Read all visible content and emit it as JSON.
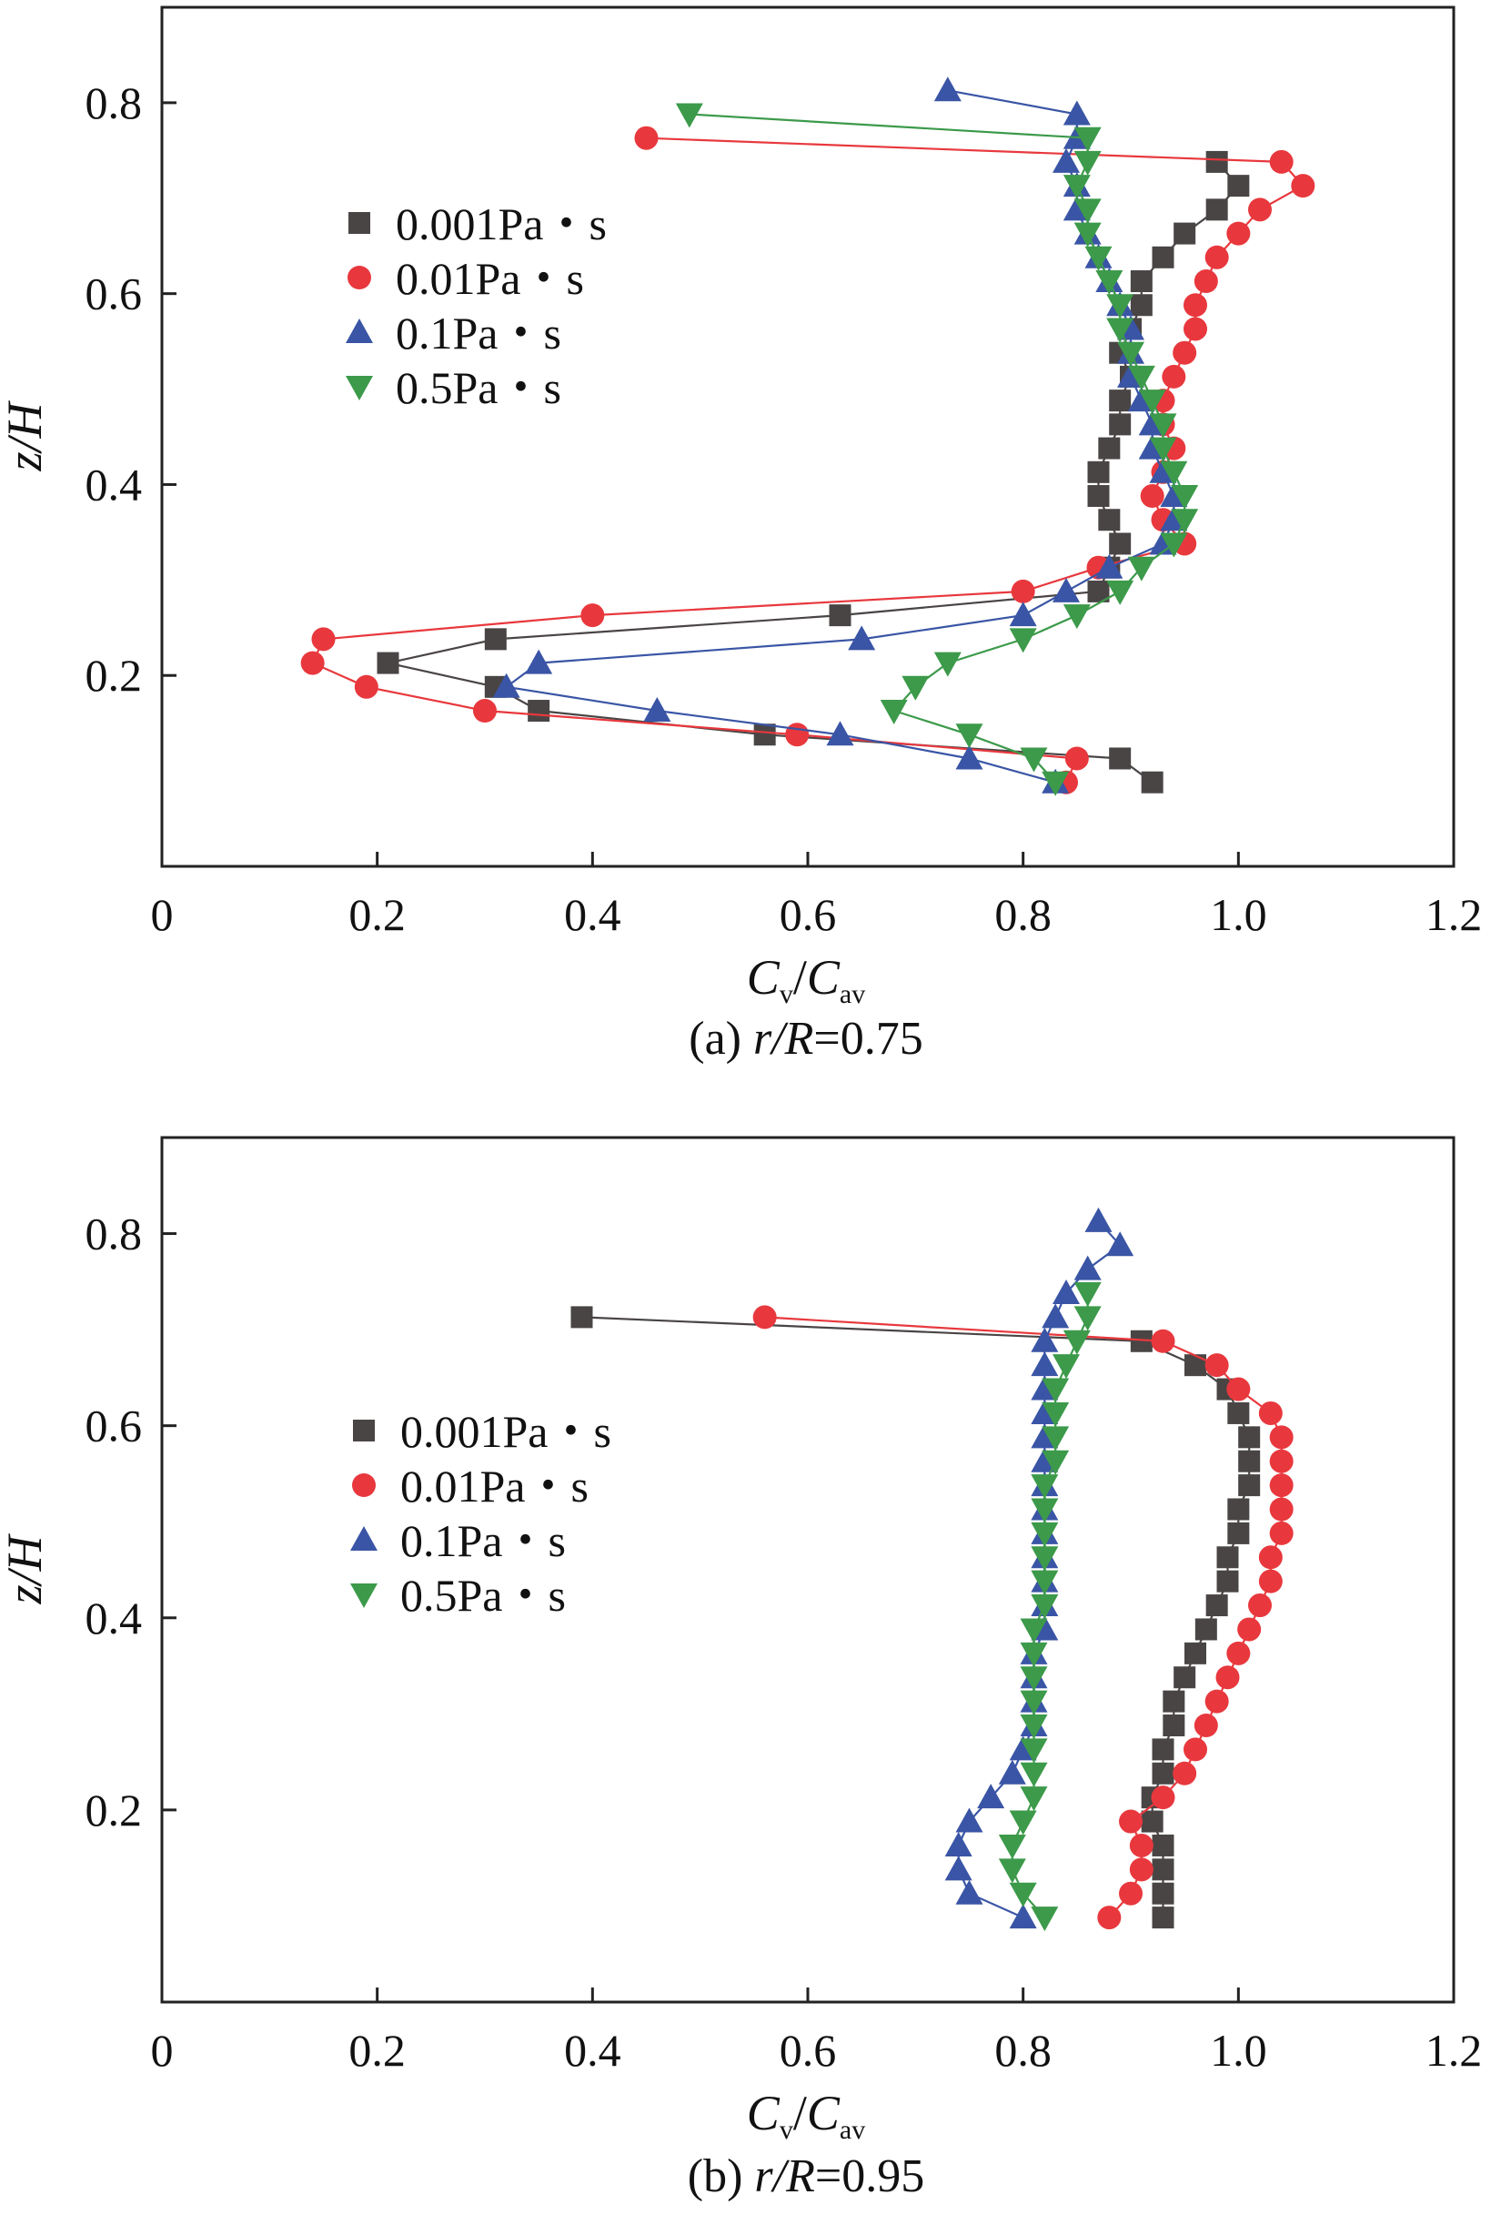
{
  "chart_data": [
    {
      "type": "line",
      "caption_prefix": "(a) ",
      "caption_var": "r/R",
      "caption_value": "=0.75",
      "xlabel_main": "C",
      "xlabel_sub1": "v",
      "xlabel_sub2": "av",
      "ylabel": "z/H",
      "xlim": [
        0,
        1.2
      ],
      "ylim": [
        0,
        0.9
      ],
      "xticks": [
        "0",
        "0.2",
        "0.4",
        "0.6",
        "0.8",
        "1.0",
        "1.2"
      ],
      "yticks": [
        "0.2",
        "0.4",
        "0.6",
        "0.8"
      ],
      "legend_position": "upper-left",
      "series": [
        {
          "name": "0.001Pa・s",
          "color": "#4a4545",
          "marker": "square",
          "points": [
            [
              0.92,
              0.088
            ],
            [
              0.89,
              0.113
            ],
            [
              0.56,
              0.138
            ],
            [
              0.35,
              0.163
            ],
            [
              0.31,
              0.188
            ],
            [
              0.21,
              0.213
            ],
            [
              0.31,
              0.238
            ],
            [
              0.63,
              0.263
            ],
            [
              0.87,
              0.288
            ],
            [
              0.88,
              0.313
            ],
            [
              0.89,
              0.338
            ],
            [
              0.88,
              0.363
            ],
            [
              0.87,
              0.388
            ],
            [
              0.87,
              0.413
            ],
            [
              0.88,
              0.438
            ],
            [
              0.89,
              0.463
            ],
            [
              0.89,
              0.488
            ],
            [
              0.9,
              0.513
            ],
            [
              0.89,
              0.538
            ],
            [
              0.9,
              0.563
            ],
            [
              0.91,
              0.588
            ],
            [
              0.91,
              0.613
            ],
            [
              0.93,
              0.638
            ],
            [
              0.95,
              0.663
            ],
            [
              0.98,
              0.688
            ],
            [
              1.0,
              0.713
            ],
            [
              0.98,
              0.738
            ]
          ]
        },
        {
          "name": "0.01Pa・s",
          "color": "#e8383d",
          "marker": "circle",
          "points": [
            [
              0.84,
              0.088
            ],
            [
              0.85,
              0.113
            ],
            [
              0.59,
              0.138
            ],
            [
              0.3,
              0.163
            ],
            [
              0.19,
              0.188
            ],
            [
              0.14,
              0.213
            ],
            [
              0.15,
              0.238
            ],
            [
              0.4,
              0.263
            ],
            [
              0.8,
              0.288
            ],
            [
              0.87,
              0.313
            ],
            [
              0.95,
              0.338
            ],
            [
              0.93,
              0.363
            ],
            [
              0.92,
              0.388
            ],
            [
              0.93,
              0.413
            ],
            [
              0.94,
              0.438
            ],
            [
              0.93,
              0.463
            ],
            [
              0.93,
              0.488
            ],
            [
              0.94,
              0.513
            ],
            [
              0.95,
              0.538
            ],
            [
              0.96,
              0.563
            ],
            [
              0.96,
              0.588
            ],
            [
              0.97,
              0.613
            ],
            [
              0.98,
              0.638
            ],
            [
              1.0,
              0.663
            ],
            [
              1.02,
              0.688
            ],
            [
              1.06,
              0.713
            ],
            [
              1.04,
              0.738
            ],
            [
              0.45,
              0.763
            ]
          ]
        },
        {
          "name": "0.1Pa・s",
          "color": "#3a55a5",
          "marker": "triangle-up",
          "points": [
            [
              0.83,
              0.088
            ],
            [
              0.75,
              0.113
            ],
            [
              0.63,
              0.138
            ],
            [
              0.46,
              0.163
            ],
            [
              0.32,
              0.188
            ],
            [
              0.35,
              0.213
            ],
            [
              0.65,
              0.238
            ],
            [
              0.8,
              0.263
            ],
            [
              0.84,
              0.288
            ],
            [
              0.88,
              0.313
            ],
            [
              0.93,
              0.338
            ],
            [
              0.94,
              0.363
            ],
            [
              0.94,
              0.388
            ],
            [
              0.93,
              0.413
            ],
            [
              0.92,
              0.438
            ],
            [
              0.92,
              0.463
            ],
            [
              0.91,
              0.488
            ],
            [
              0.9,
              0.513
            ],
            [
              0.9,
              0.538
            ],
            [
              0.9,
              0.563
            ],
            [
              0.89,
              0.588
            ],
            [
              0.88,
              0.613
            ],
            [
              0.87,
              0.638
            ],
            [
              0.86,
              0.663
            ],
            [
              0.85,
              0.688
            ],
            [
              0.85,
              0.713
            ],
            [
              0.84,
              0.738
            ],
            [
              0.85,
              0.763
            ],
            [
              0.85,
              0.788
            ],
            [
              0.73,
              0.813
            ]
          ]
        },
        {
          "name": "0.5Pa・s",
          "color": "#3c9a4a",
          "marker": "triangle-down",
          "points": [
            [
              0.83,
              0.088
            ],
            [
              0.81,
              0.113
            ],
            [
              0.75,
              0.138
            ],
            [
              0.68,
              0.163
            ],
            [
              0.7,
              0.188
            ],
            [
              0.73,
              0.213
            ],
            [
              0.8,
              0.238
            ],
            [
              0.85,
              0.263
            ],
            [
              0.89,
              0.288
            ],
            [
              0.91,
              0.313
            ],
            [
              0.94,
              0.338
            ],
            [
              0.95,
              0.363
            ],
            [
              0.95,
              0.388
            ],
            [
              0.94,
              0.413
            ],
            [
              0.93,
              0.438
            ],
            [
              0.93,
              0.463
            ],
            [
              0.92,
              0.488
            ],
            [
              0.91,
              0.513
            ],
            [
              0.9,
              0.538
            ],
            [
              0.89,
              0.563
            ],
            [
              0.89,
              0.588
            ],
            [
              0.88,
              0.613
            ],
            [
              0.87,
              0.638
            ],
            [
              0.86,
              0.663
            ],
            [
              0.86,
              0.688
            ],
            [
              0.85,
              0.713
            ],
            [
              0.86,
              0.738
            ],
            [
              0.86,
              0.763
            ],
            [
              0.49,
              0.788
            ]
          ]
        }
      ]
    },
    {
      "type": "line",
      "caption_prefix": "(b) ",
      "caption_var": "r/R",
      "caption_value": "=0.95",
      "xlabel_main": "C",
      "xlabel_sub1": "v",
      "xlabel_sub2": "av",
      "ylabel": "z/H",
      "xlim": [
        0,
        1.2
      ],
      "ylim": [
        0,
        0.9
      ],
      "xticks": [
        "0",
        "0.2",
        "0.4",
        "0.6",
        "0.8",
        "1.0",
        "1.2"
      ],
      "yticks": [
        "0.2",
        "0.4",
        "0.6",
        "0.8"
      ],
      "legend_position": "center-left",
      "series": [
        {
          "name": "0.001Pa・s",
          "color": "#4a4545",
          "marker": "square",
          "points": [
            [
              0.93,
              0.088
            ],
            [
              0.93,
              0.113
            ],
            [
              0.93,
              0.138
            ],
            [
              0.93,
              0.163
            ],
            [
              0.92,
              0.188
            ],
            [
              0.92,
              0.213
            ],
            [
              0.93,
              0.238
            ],
            [
              0.93,
              0.263
            ],
            [
              0.94,
              0.288
            ],
            [
              0.94,
              0.313
            ],
            [
              0.95,
              0.338
            ],
            [
              0.96,
              0.363
            ],
            [
              0.97,
              0.388
            ],
            [
              0.98,
              0.413
            ],
            [
              0.99,
              0.438
            ],
            [
              0.99,
              0.463
            ],
            [
              1.0,
              0.488
            ],
            [
              1.0,
              0.513
            ],
            [
              1.01,
              0.538
            ],
            [
              1.01,
              0.563
            ],
            [
              1.01,
              0.588
            ],
            [
              1.0,
              0.613
            ],
            [
              0.99,
              0.638
            ],
            [
              0.96,
              0.663
            ],
            [
              0.91,
              0.688
            ],
            [
              0.39,
              0.713
            ]
          ]
        },
        {
          "name": "0.01Pa・s",
          "color": "#e8383d",
          "marker": "circle",
          "points": [
            [
              0.88,
              0.088
            ],
            [
              0.9,
              0.113
            ],
            [
              0.91,
              0.138
            ],
            [
              0.91,
              0.163
            ],
            [
              0.9,
              0.188
            ],
            [
              0.93,
              0.213
            ],
            [
              0.95,
              0.238
            ],
            [
              0.96,
              0.263
            ],
            [
              0.97,
              0.288
            ],
            [
              0.98,
              0.313
            ],
            [
              0.99,
              0.338
            ],
            [
              1.0,
              0.363
            ],
            [
              1.01,
              0.388
            ],
            [
              1.02,
              0.413
            ],
            [
              1.03,
              0.438
            ],
            [
              1.03,
              0.463
            ],
            [
              1.04,
              0.488
            ],
            [
              1.04,
              0.513
            ],
            [
              1.04,
              0.538
            ],
            [
              1.04,
              0.563
            ],
            [
              1.04,
              0.588
            ],
            [
              1.03,
              0.613
            ],
            [
              1.0,
              0.638
            ],
            [
              0.98,
              0.663
            ],
            [
              0.93,
              0.688
            ],
            [
              0.56,
              0.713
            ]
          ]
        },
        {
          "name": "0.1Pa・s",
          "color": "#3a55a5",
          "marker": "triangle-up",
          "points": [
            [
              0.8,
              0.088
            ],
            [
              0.75,
              0.113
            ],
            [
              0.74,
              0.138
            ],
            [
              0.74,
              0.163
            ],
            [
              0.75,
              0.188
            ],
            [
              0.77,
              0.213
            ],
            [
              0.79,
              0.238
            ],
            [
              0.8,
              0.263
            ],
            [
              0.81,
              0.288
            ],
            [
              0.81,
              0.313
            ],
            [
              0.81,
              0.338
            ],
            [
              0.81,
              0.363
            ],
            [
              0.82,
              0.388
            ],
            [
              0.82,
              0.413
            ],
            [
              0.82,
              0.438
            ],
            [
              0.82,
              0.463
            ],
            [
              0.82,
              0.488
            ],
            [
              0.82,
              0.513
            ],
            [
              0.82,
              0.538
            ],
            [
              0.82,
              0.563
            ],
            [
              0.82,
              0.588
            ],
            [
              0.82,
              0.613
            ],
            [
              0.82,
              0.638
            ],
            [
              0.82,
              0.663
            ],
            [
              0.82,
              0.688
            ],
            [
              0.83,
              0.713
            ],
            [
              0.84,
              0.738
            ],
            [
              0.86,
              0.763
            ],
            [
              0.89,
              0.788
            ],
            [
              0.87,
              0.813
            ]
          ]
        },
        {
          "name": "0.5Pa・s",
          "color": "#3c9a4a",
          "marker": "triangle-down",
          "points": [
            [
              0.82,
              0.088
            ],
            [
              0.8,
              0.113
            ],
            [
              0.79,
              0.138
            ],
            [
              0.79,
              0.163
            ],
            [
              0.8,
              0.188
            ],
            [
              0.81,
              0.213
            ],
            [
              0.81,
              0.238
            ],
            [
              0.81,
              0.263
            ],
            [
              0.81,
              0.288
            ],
            [
              0.81,
              0.313
            ],
            [
              0.81,
              0.338
            ],
            [
              0.81,
              0.363
            ],
            [
              0.81,
              0.388
            ],
            [
              0.82,
              0.413
            ],
            [
              0.82,
              0.438
            ],
            [
              0.82,
              0.463
            ],
            [
              0.82,
              0.488
            ],
            [
              0.82,
              0.513
            ],
            [
              0.82,
              0.538
            ],
            [
              0.83,
              0.563
            ],
            [
              0.83,
              0.588
            ],
            [
              0.83,
              0.613
            ],
            [
              0.83,
              0.638
            ],
            [
              0.84,
              0.663
            ],
            [
              0.85,
              0.688
            ],
            [
              0.86,
              0.713
            ],
            [
              0.86,
              0.738
            ]
          ]
        }
      ]
    }
  ]
}
